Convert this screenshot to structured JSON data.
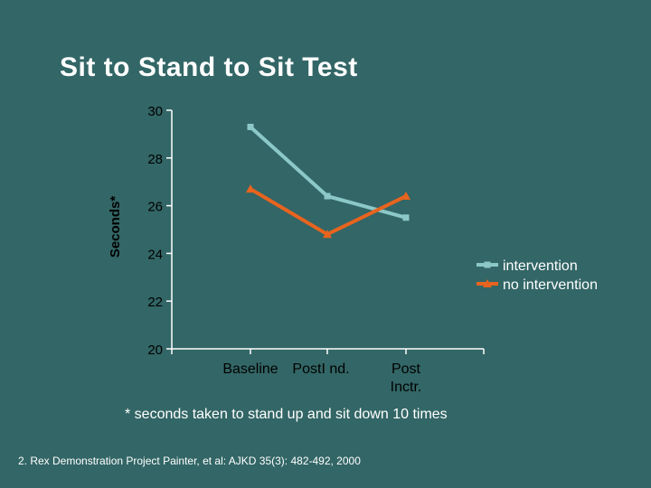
{
  "slide": {
    "title": "Sit to Stand to Sit Test",
    "footnote": "* seconds taken to stand up and sit down 10 times",
    "citation": "2. Rex Demonstration Project  Painter, et al:  AJKD 35(3): 482-492, 2000"
  },
  "chart_data": {
    "type": "line",
    "title": "",
    "ylabel": "Seconds*",
    "xlabel": "",
    "categories": [
      "Baseline",
      "PostI nd.",
      "Post Inctr."
    ],
    "category_lines": [
      [
        "Baseline"
      ],
      [
        "PostI nd."
      ],
      [
        "Post",
        "Inctr."
      ]
    ],
    "ylim": [
      20,
      30
    ],
    "yticks": [
      20,
      22,
      24,
      26,
      28,
      30
    ],
    "grid": false,
    "legend": "right",
    "series": [
      {
        "name": "intervention",
        "values": [
          29.3,
          26.4,
          25.5
        ],
        "color": "#8cc8c8",
        "marker": "square"
      },
      {
        "name": "no intervention",
        "values": [
          26.7,
          24.8,
          26.4
        ],
        "color": "#e8641e",
        "marker": "triangle"
      }
    ]
  }
}
